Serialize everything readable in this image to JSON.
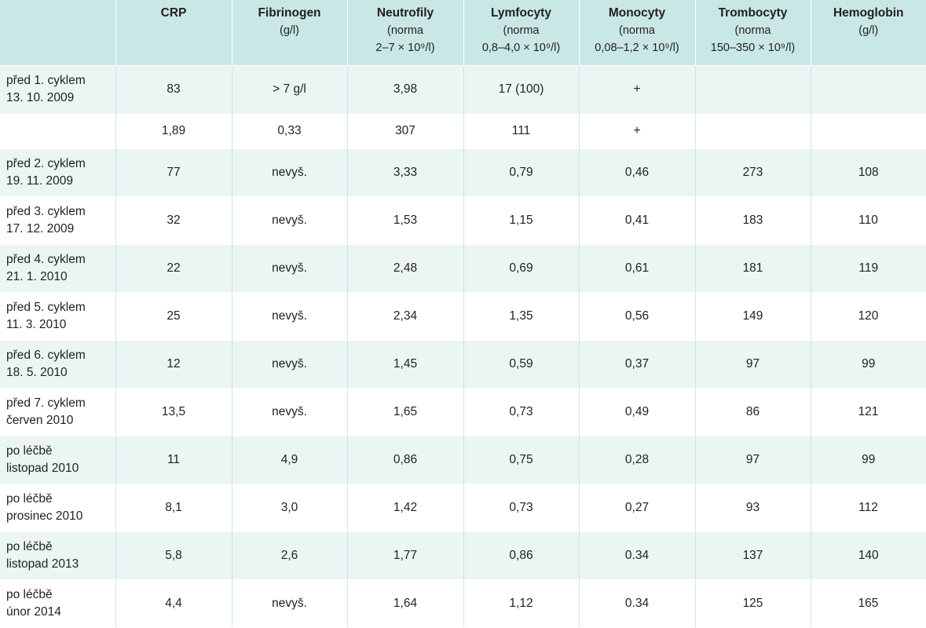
{
  "table": {
    "headers": [
      {
        "title": "",
        "sub": []
      },
      {
        "title": "CRP",
        "sub": []
      },
      {
        "title": "Fibrinogen",
        "sub": [
          "(g/l)"
        ]
      },
      {
        "title": "Neutrofily",
        "sub": [
          "(norma",
          "2–7 × 10⁹/l)"
        ]
      },
      {
        "title": "Lymfocyty",
        "sub": [
          "(norma",
          "0,8–4,0 × 10⁹/l)"
        ]
      },
      {
        "title": "Monocyty",
        "sub": [
          "(norma",
          "0,08–1,2 × 10⁹/l)"
        ]
      },
      {
        "title": "Trombocyty",
        "sub": [
          "(norma",
          "150–350 × 10⁹/l)"
        ]
      },
      {
        "title": "Hemoglobin",
        "sub": [
          "(g/l)"
        ]
      }
    ],
    "rows": [
      {
        "label": [
          "před 1. cyklem",
          "13. 10. 2009"
        ],
        "cells": [
          "83",
          "> 7 g/l",
          "3,98",
          "17 (100)",
          "+",
          "",
          ""
        ]
      },
      {
        "label": [],
        "cells": [
          "1,89",
          "0,33",
          "307",
          "111",
          "+",
          "",
          ""
        ]
      },
      {
        "label": [
          "před 2. cyklem",
          "19. 11. 2009"
        ],
        "cells": [
          "77",
          "nevyš.",
          "3,33",
          "0,79",
          "0,46",
          "273",
          "108"
        ]
      },
      {
        "label": [
          "před 3. cyklem",
          "17. 12. 2009"
        ],
        "cells": [
          "32",
          "nevyš.",
          "1,53",
          "1,15",
          "0,41",
          "183",
          "110"
        ]
      },
      {
        "label": [
          "před 4. cyklem",
          "21. 1. 2010"
        ],
        "cells": [
          "22",
          "nevyš.",
          "2,48",
          "0,69",
          "0,61",
          "181",
          "119"
        ]
      },
      {
        "label": [
          "před 5. cyklem",
          "11. 3. 2010"
        ],
        "cells": [
          "25",
          "nevyš.",
          "2,34",
          "1,35",
          "0,56",
          "149",
          "120"
        ]
      },
      {
        "label": [
          "před 6. cyklem",
          "18. 5. 2010"
        ],
        "cells": [
          "12",
          "nevyš.",
          "1,45",
          "0,59",
          "0,37",
          "97",
          "99"
        ]
      },
      {
        "label": [
          "před 7. cyklem",
          "červen 2010"
        ],
        "cells": [
          "13,5",
          "nevyš.",
          "1,65",
          "0,73",
          "0,49",
          "86",
          "121"
        ]
      },
      {
        "label": [
          "po léčbě",
          "listopad 2010"
        ],
        "cells": [
          "11",
          "4,9",
          "0,86",
          "0,75",
          "0,28",
          "97",
          "99"
        ]
      },
      {
        "label": [
          "po léčbě",
          "prosinec 2010"
        ],
        "cells": [
          "8,1",
          "3,0",
          "1,42",
          "0,73",
          "0,27",
          "93",
          "112"
        ]
      },
      {
        "label": [
          "po léčbě",
          "listopad 2013"
        ],
        "cells": [
          "5,8",
          "2,6",
          "1,77",
          "0,86",
          "0.34",
          "137",
          "140"
        ]
      },
      {
        "label": [
          "po léčbě",
          "únor 2014"
        ],
        "cells": [
          "4,4",
          "nevyš.",
          "1,64",
          "1,12",
          "0.34",
          "125",
          "165"
        ]
      }
    ]
  }
}
